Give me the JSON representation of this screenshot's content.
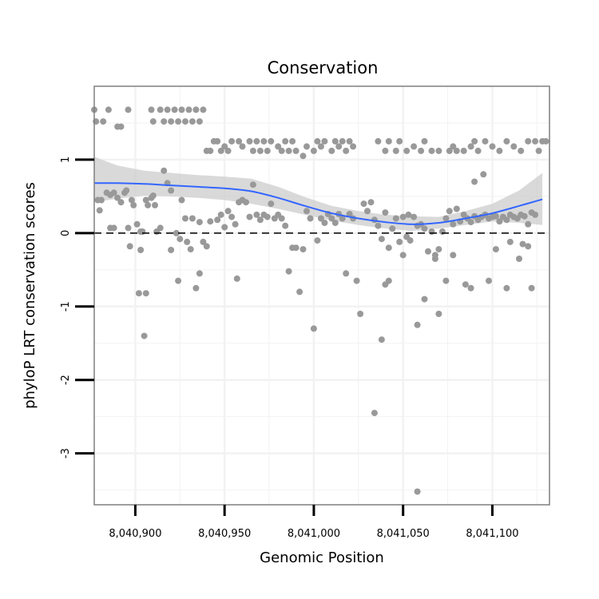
{
  "chart_data": {
    "type": "scatter",
    "title": "Conservation",
    "xlabel": "Genomic Position",
    "ylabel": "phyloP LRT conservation scores",
    "xlim": [
      8040877,
      8041132
    ],
    "ylim": [
      -3.7,
      2.0
    ],
    "x_ticks": [
      {
        "value": 8040900,
        "label": "8,040,900"
      },
      {
        "value": 8040950,
        "label": "8,040,950"
      },
      {
        "value": 8041000,
        "label": "8,041,000"
      },
      {
        "value": 8041050,
        "label": "8,041,050"
      },
      {
        "value": 8041100,
        "label": "8,041,100"
      }
    ],
    "y_ticks": [
      {
        "value": 1,
        "label": "1"
      },
      {
        "value": 0,
        "label": "0"
      },
      {
        "value": -1,
        "label": "-1"
      },
      {
        "value": -2,
        "label": "-2"
      },
      {
        "value": -3,
        "label": "-3"
      }
    ],
    "grid": true,
    "reference_line": {
      "y": 0,
      "style": "dashed"
    },
    "colors": {
      "points": "#999999",
      "smooth": "#3366ff",
      "ribbon": "#cccccc",
      "grid": "#f2f2f2",
      "border": "#7f7f7f"
    },
    "series": [
      {
        "name": "scores",
        "points": [
          [
            8040877,
            1.68
          ],
          [
            8040878,
            1.52
          ],
          [
            8040882,
            1.52
          ],
          [
            8040885,
            1.68
          ],
          [
            8040890,
            1.45
          ],
          [
            8040892,
            1.45
          ],
          [
            8040896,
            1.68
          ],
          [
            8040909,
            1.68
          ],
          [
            8040910,
            1.52
          ],
          [
            8040914,
            1.68
          ],
          [
            8040916,
            1.52
          ],
          [
            8040918,
            1.68
          ],
          [
            8040920,
            1.52
          ],
          [
            8040922,
            1.68
          ],
          [
            8040924,
            1.52
          ],
          [
            8040926,
            1.68
          ],
          [
            8040928,
            1.52
          ],
          [
            8040930,
            1.68
          ],
          [
            8040932,
            1.52
          ],
          [
            8040934,
            1.68
          ],
          [
            8040936,
            1.52
          ],
          [
            8040938,
            1.68
          ],
          [
            8040879,
            0.45
          ],
          [
            8040880,
            0.31
          ],
          [
            8040881,
            0.45
          ],
          [
            8040884,
            0.55
          ],
          [
            8040886,
            0.52
          ],
          [
            8040888,
            0.55
          ],
          [
            8040890,
            0.48
          ],
          [
            8040892,
            0.42
          ],
          [
            8040894,
            0.55
          ],
          [
            8040895,
            0.58
          ],
          [
            8040898,
            0.45
          ],
          [
            8040899,
            0.38
          ],
          [
            8040886,
            0.07
          ],
          [
            8040888,
            0.07
          ],
          [
            8040896,
            0.07
          ],
          [
            8040897,
            -0.18
          ],
          [
            8040901,
            0.12
          ],
          [
            8040903,
            -0.23
          ],
          [
            8040906,
            0.45
          ],
          [
            8040907,
            0.38
          ],
          [
            8040909,
            0.48
          ],
          [
            8040910,
            0.51
          ],
          [
            8040911,
            0.38
          ],
          [
            8040912,
            0.02
          ],
          [
            8040914,
            0.07
          ],
          [
            8040916,
            0.85
          ],
          [
            8040918,
            0.68
          ],
          [
            8040920,
            0.58
          ],
          [
            8040920,
            -0.23
          ],
          [
            8040902,
            -0.82
          ],
          [
            8040906,
            -0.82
          ],
          [
            8040905,
            -1.4
          ],
          [
            8040904,
            0.02
          ],
          [
            8040903,
            0.02
          ],
          [
            8040923,
            0.0
          ],
          [
            8040925,
            -0.08
          ],
          [
            8040926,
            0.45
          ],
          [
            8040928,
            0.2
          ],
          [
            8040929,
            -0.12
          ],
          [
            8040931,
            -0.22
          ],
          [
            8040932,
            0.2
          ],
          [
            8040934,
            -0.75
          ],
          [
            8040936,
            0.15
          ],
          [
            8040938,
            -0.12
          ],
          [
            8040940,
            -0.18
          ],
          [
            8040942,
            0.16
          ],
          [
            8040924,
            -0.65
          ],
          [
            8040936,
            -0.55
          ],
          [
            8040940,
            1.12
          ],
          [
            8040942,
            1.12
          ],
          [
            8040944,
            1.25
          ],
          [
            8040946,
            1.25
          ],
          [
            8040948,
            1.12
          ],
          [
            8040950,
            1.18
          ],
          [
            8040952,
            1.12
          ],
          [
            8040954,
            1.25
          ],
          [
            8040958,
            1.25
          ],
          [
            8040960,
            1.18
          ],
          [
            8040964,
            1.25
          ],
          [
            8040966,
            1.12
          ],
          [
            8040968,
            1.25
          ],
          [
            8040970,
            1.12
          ],
          [
            8040972,
            1.25
          ],
          [
            8040974,
            1.12
          ],
          [
            8040976,
            1.25
          ],
          [
            8040980,
            1.18
          ],
          [
            8040982,
            1.12
          ],
          [
            8040984,
            1.25
          ],
          [
            8040986,
            1.12
          ],
          [
            8040988,
            1.25
          ],
          [
            8040990,
            1.12
          ],
          [
            8040994,
            1.05
          ],
          [
            8040996,
            1.18
          ],
          [
            8041000,
            1.12
          ],
          [
            8041002,
            1.25
          ],
          [
            8041004,
            1.18
          ],
          [
            8041006,
            1.25
          ],
          [
            8041010,
            1.12
          ],
          [
            8041012,
            1.25
          ],
          [
            8041014,
            1.18
          ],
          [
            8041016,
            1.25
          ],
          [
            8041018,
            1.12
          ],
          [
            8041020,
            1.25
          ],
          [
            8041022,
            1.18
          ],
          [
            8040946,
            0.18
          ],
          [
            8040948,
            0.25
          ],
          [
            8040950,
            0.08
          ],
          [
            8040952,
            0.3
          ],
          [
            8040954,
            0.22
          ],
          [
            8040956,
            0.12
          ],
          [
            8040957,
            -0.62
          ],
          [
            8040958,
            0.42
          ],
          [
            8040960,
            0.45
          ],
          [
            8040962,
            0.42
          ],
          [
            8040964,
            0.22
          ],
          [
            8040966,
            0.66
          ],
          [
            8040968,
            0.25
          ],
          [
            8040970,
            0.18
          ],
          [
            8040972,
            0.25
          ],
          [
            8040974,
            0.22
          ],
          [
            8040976,
            0.4
          ],
          [
            8040978,
            0.2
          ],
          [
            8040980,
            0.25
          ],
          [
            8040982,
            0.2
          ],
          [
            8040984,
            0.1
          ],
          [
            8040986,
            -0.52
          ],
          [
            8040988,
            -0.2
          ],
          [
            8040990,
            -0.2
          ],
          [
            8040992,
            -0.8
          ],
          [
            8040994,
            -0.22
          ],
          [
            8040996,
            0.3
          ],
          [
            8040998,
            0.2
          ],
          [
            8041000,
            -1.3
          ],
          [
            8041002,
            -0.1
          ],
          [
            8041004,
            0.2
          ],
          [
            8041006,
            0.14
          ],
          [
            8041008,
            0.26
          ],
          [
            8041010,
            0.2
          ],
          [
            8041012,
            0.14
          ],
          [
            8041014,
            0.26
          ],
          [
            8041016,
            0.2
          ],
          [
            8041018,
            -0.55
          ],
          [
            8041020,
            0.26
          ],
          [
            8041022,
            0.2
          ],
          [
            8041024,
            -0.65
          ],
          [
            8041026,
            -1.1
          ],
          [
            8041028,
            0.4
          ],
          [
            8041030,
            0.3
          ],
          [
            8041032,
            0.42
          ],
          [
            8041034,
            0.18
          ],
          [
            8041036,
            0.1
          ],
          [
            8041038,
            -0.08
          ],
          [
            8041040,
            0.28
          ],
          [
            8041042,
            -0.2
          ],
          [
            8041044,
            0.06
          ],
          [
            8041046,
            0.2
          ],
          [
            8041048,
            -0.12
          ],
          [
            8041050,
            0.22
          ],
          [
            8041052,
            -0.05
          ],
          [
            8041053,
            0.25
          ],
          [
            8041054,
            -0.1
          ],
          [
            8041056,
            0.22
          ],
          [
            8041058,
            0.1
          ],
          [
            8041060,
            0.12
          ],
          [
            8041062,
            0.06
          ],
          [
            8041064,
            -0.25
          ],
          [
            8041066,
            0.02
          ],
          [
            8041068,
            -0.3
          ],
          [
            8041070,
            -0.22
          ],
          [
            8041072,
            0.02
          ],
          [
            8041074,
            0.2
          ],
          [
            8041076,
            0.3
          ],
          [
            8041078,
            0.12
          ],
          [
            8041080,
            0.33
          ],
          [
            8041082,
            0.16
          ],
          [
            8041084,
            0.25
          ],
          [
            8041086,
            0.2
          ],
          [
            8041088,
            0.15
          ],
          [
            8041090,
            0.23
          ],
          [
            8041092,
            0.18
          ],
          [
            8041094,
            0.22
          ],
          [
            8041096,
            0.25
          ],
          [
            8041098,
            0.2
          ],
          [
            8041100,
            0.22
          ],
          [
            8041102,
            0.23
          ],
          [
            8041104,
            0.16
          ],
          [
            8041106,
            0.22
          ],
          [
            8041108,
            0.18
          ],
          [
            8041110,
            0.25
          ],
          [
            8041112,
            0.22
          ],
          [
            8041114,
            0.2
          ],
          [
            8041116,
            0.25
          ],
          [
            8041118,
            0.23
          ],
          [
            8041120,
            0.12
          ],
          [
            8041122,
            0.28
          ],
          [
            8041124,
            0.25
          ],
          [
            8041034,
            -2.45
          ],
          [
            8041038,
            -1.45
          ],
          [
            8041040,
            -0.7
          ],
          [
            8041042,
            -0.65
          ],
          [
            8041050,
            -0.3
          ],
          [
            8041058,
            -1.25
          ],
          [
            8041062,
            -0.9
          ],
          [
            8041068,
            -0.35
          ],
          [
            8041070,
            -1.1
          ],
          [
            8041074,
            -0.65
          ],
          [
            8041078,
            -0.3
          ],
          [
            8041085,
            -0.7
          ],
          [
            8041088,
            -0.75
          ],
          [
            8041098,
            -0.65
          ],
          [
            8041108,
            -0.75
          ],
          [
            8041115,
            -0.35
          ],
          [
            8041122,
            -0.75
          ],
          [
            8041102,
            -0.22
          ],
          [
            8041110,
            -0.12
          ],
          [
            8041117,
            -0.15
          ],
          [
            8041120,
            -0.18
          ],
          [
            8041090,
            0.7
          ],
          [
            8041095,
            0.8
          ],
          [
            8041058,
            -3.52
          ],
          [
            8041036,
            1.25
          ],
          [
            8041040,
            1.12
          ],
          [
            8041042,
            1.25
          ],
          [
            8041046,
            1.12
          ],
          [
            8041048,
            1.25
          ],
          [
            8041052,
            1.12
          ],
          [
            8041056,
            1.18
          ],
          [
            8041060,
            1.12
          ],
          [
            8041062,
            1.25
          ],
          [
            8041066,
            1.12
          ],
          [
            8041070,
            1.12
          ],
          [
            8041076,
            1.12
          ],
          [
            8041078,
            1.18
          ],
          [
            8041080,
            1.12
          ],
          [
            8041084,
            1.12
          ],
          [
            8041088,
            1.18
          ],
          [
            8041090,
            1.25
          ],
          [
            8041092,
            1.12
          ],
          [
            8041096,
            1.25
          ],
          [
            8041100,
            1.18
          ],
          [
            8041104,
            1.12
          ],
          [
            8041108,
            1.25
          ],
          [
            8041112,
            1.18
          ],
          [
            8041116,
            1.12
          ],
          [
            8041120,
            1.25
          ],
          [
            8041124,
            1.25
          ],
          [
            8041126,
            1.12
          ],
          [
            8041128,
            1.25
          ],
          [
            8041130,
            1.25
          ]
        ]
      }
    ],
    "smooth": {
      "x": [
        8040877,
        8040890,
        8040905,
        8040920,
        8040935,
        8040950,
        8040965,
        8040980,
        8040995,
        8041010,
        8041025,
        8041040,
        8041055,
        8041070,
        8041085,
        8041100,
        8041115,
        8041128
      ],
      "y": [
        0.68,
        0.68,
        0.67,
        0.65,
        0.63,
        0.61,
        0.57,
        0.48,
        0.37,
        0.27,
        0.2,
        0.15,
        0.12,
        0.14,
        0.2,
        0.27,
        0.37,
        0.46
      ],
      "lower": [
        0.42,
        0.47,
        0.51,
        0.5,
        0.48,
        0.45,
        0.4,
        0.33,
        0.25,
        0.17,
        0.11,
        0.06,
        0.03,
        0.06,
        0.11,
        0.16,
        0.14,
        0.11
      ],
      "upper": [
        1.04,
        0.92,
        0.85,
        0.82,
        0.79,
        0.77,
        0.74,
        0.63,
        0.49,
        0.37,
        0.3,
        0.25,
        0.23,
        0.22,
        0.3,
        0.4,
        0.58,
        0.82
      ]
    }
  }
}
